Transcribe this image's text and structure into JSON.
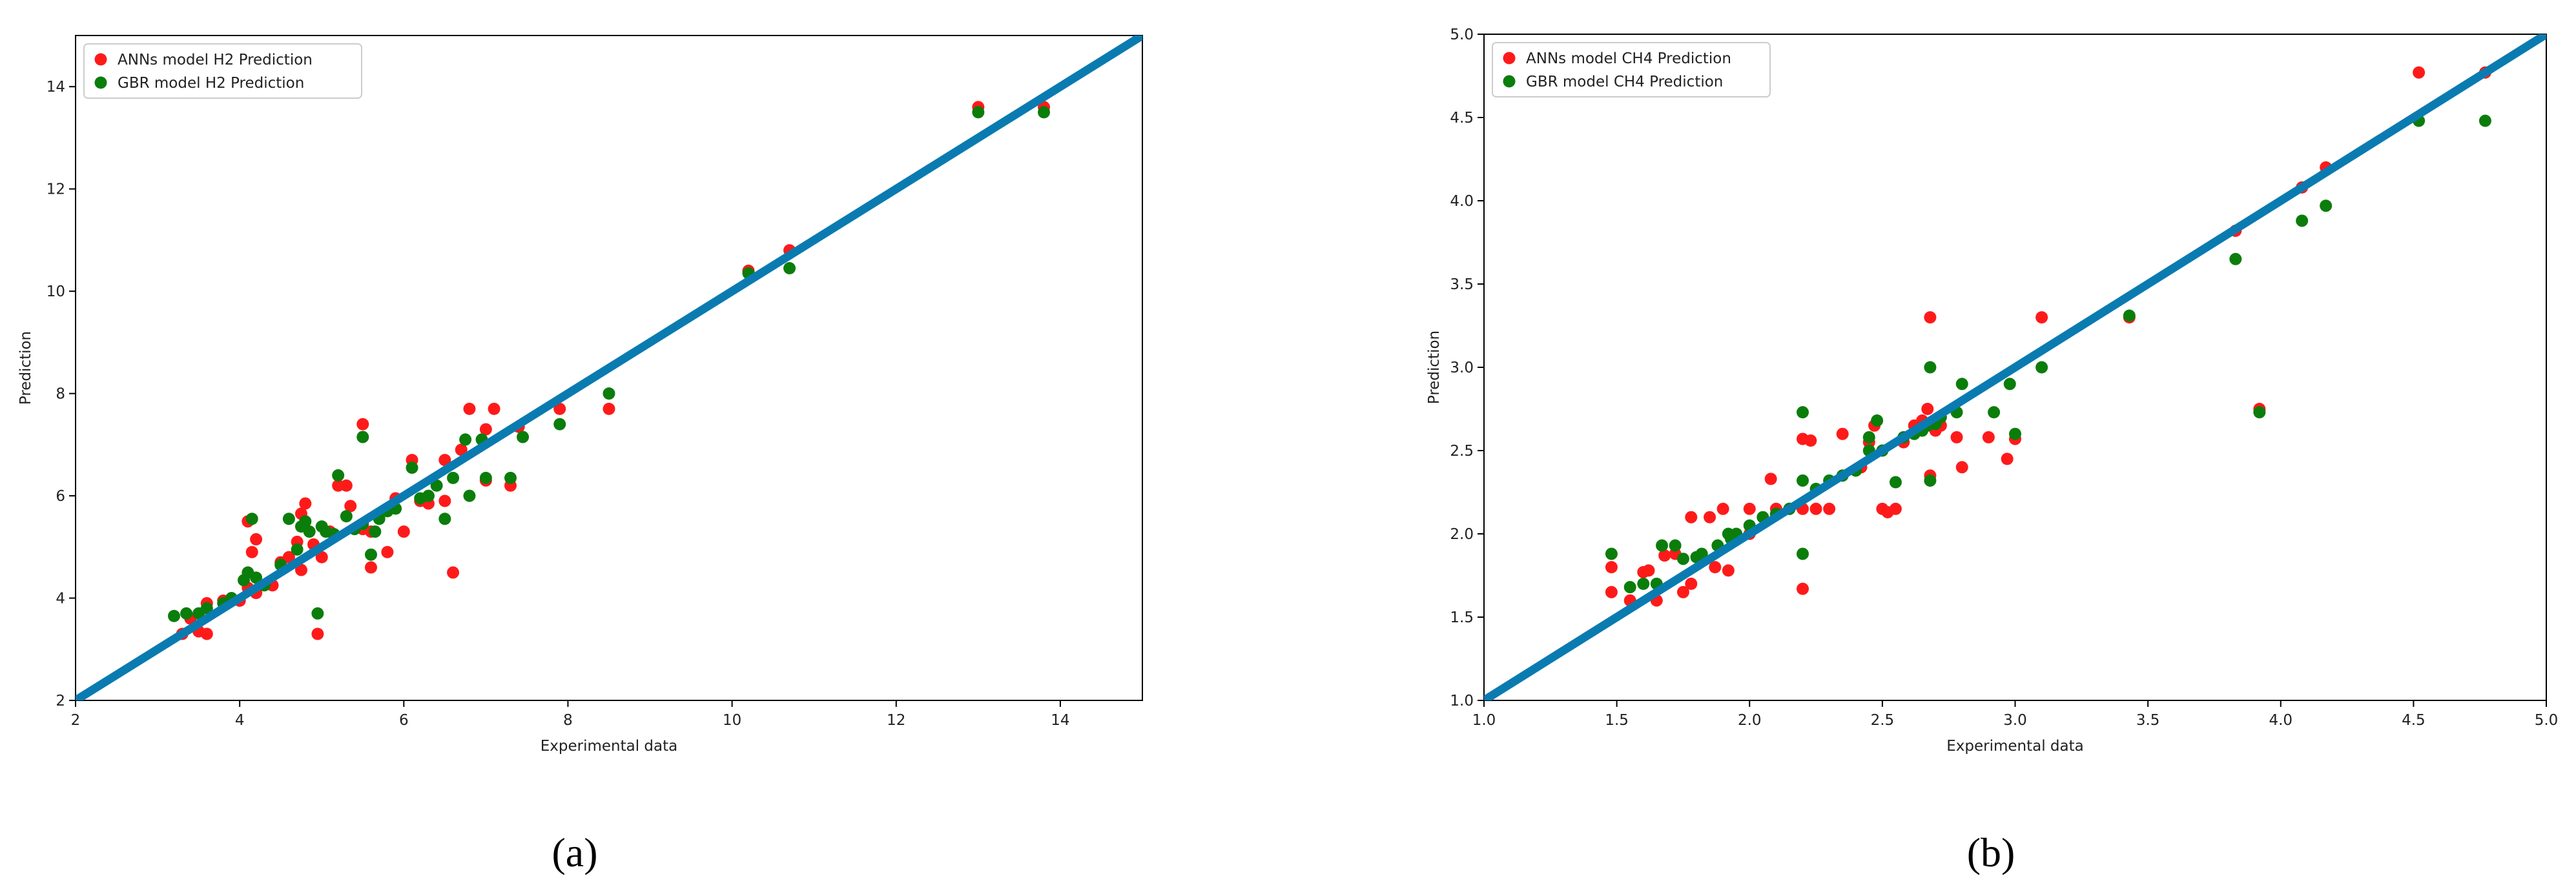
{
  "panels": [
    {
      "label": "(a)"
    },
    {
      "label": "(b)"
    }
  ],
  "chart_data": [
    {
      "type": "scatter",
      "xlabel": "Experimental data",
      "ylabel": "Prediction",
      "xlim": [
        2,
        15
      ],
      "ylim": [
        2,
        15
      ],
      "xticks": [
        2,
        4,
        6,
        8,
        10,
        12,
        14
      ],
      "yticks": [
        2,
        4,
        6,
        8,
        10,
        12,
        14
      ],
      "tick_format": 0,
      "grid": false,
      "legend_position": "top-left",
      "reference_line": {
        "x": [
          2,
          15
        ],
        "y": [
          2,
          15
        ],
        "color": "#0a7bb0"
      },
      "series": [
        {
          "name": "ANNs model H2 Prediction",
          "color": "#ff1a1a",
          "points": [
            [
              3.3,
              3.3
            ],
            [
              3.4,
              3.6
            ],
            [
              3.5,
              3.35
            ],
            [
              3.6,
              3.3
            ],
            [
              3.6,
              3.9
            ],
            [
              3.8,
              3.95
            ],
            [
              4.0,
              3.95
            ],
            [
              4.1,
              4.2
            ],
            [
              4.1,
              5.5
            ],
            [
              4.15,
              4.9
            ],
            [
              4.2,
              5.15
            ],
            [
              4.2,
              4.1
            ],
            [
              4.4,
              4.25
            ],
            [
              4.5,
              4.7
            ],
            [
              4.6,
              4.8
            ],
            [
              4.7,
              5.1
            ],
            [
              4.75,
              5.65
            ],
            [
              4.8,
              5.85
            ],
            [
              4.75,
              4.55
            ],
            [
              4.9,
              5.05
            ],
            [
              4.95,
              3.3
            ],
            [
              5.0,
              4.8
            ],
            [
              5.1,
              5.3
            ],
            [
              5.2,
              6.2
            ],
            [
              5.3,
              6.2
            ],
            [
              5.35,
              5.8
            ],
            [
              5.5,
              7.4
            ],
            [
              5.5,
              5.35
            ],
            [
              5.6,
              4.6
            ],
            [
              5.6,
              5.3
            ],
            [
              5.8,
              4.9
            ],
            [
              5.9,
              5.95
            ],
            [
              6.0,
              5.3
            ],
            [
              6.1,
              6.7
            ],
            [
              6.2,
              5.9
            ],
            [
              6.3,
              5.85
            ],
            [
              6.5,
              5.9
            ],
            [
              6.5,
              6.7
            ],
            [
              6.6,
              4.5
            ],
            [
              6.7,
              6.9
            ],
            [
              6.8,
              7.7
            ],
            [
              7.0,
              6.3
            ],
            [
              7.0,
              7.3
            ],
            [
              7.1,
              7.7
            ],
            [
              7.3,
              6.2
            ],
            [
              7.4,
              7.35
            ],
            [
              7.9,
              7.7
            ],
            [
              8.5,
              7.7
            ],
            [
              10.2,
              10.4
            ],
            [
              10.7,
              10.8
            ],
            [
              13.0,
              13.6
            ],
            [
              13.8,
              13.6
            ]
          ]
        },
        {
          "name": "GBR model H2 Prediction",
          "color": "#0b7d0b",
          "points": [
            [
              3.2,
              3.65
            ],
            [
              3.35,
              3.7
            ],
            [
              3.5,
              3.7
            ],
            [
              3.6,
              3.8
            ],
            [
              3.8,
              3.9
            ],
            [
              3.9,
              4.0
            ],
            [
              4.05,
              4.35
            ],
            [
              4.1,
              4.5
            ],
            [
              4.15,
              5.55
            ],
            [
              4.2,
              4.4
            ],
            [
              4.3,
              4.25
            ],
            [
              4.5,
              4.65
            ],
            [
              4.6,
              5.55
            ],
            [
              4.7,
              4.95
            ],
            [
              4.75,
              5.4
            ],
            [
              4.8,
              5.5
            ],
            [
              4.85,
              5.3
            ],
            [
              4.95,
              3.7
            ],
            [
              5.0,
              5.4
            ],
            [
              5.05,
              5.3
            ],
            [
              5.15,
              5.25
            ],
            [
              5.2,
              6.4
            ],
            [
              5.3,
              5.6
            ],
            [
              5.4,
              5.35
            ],
            [
              5.5,
              7.15
            ],
            [
              5.5,
              5.45
            ],
            [
              5.6,
              4.85
            ],
            [
              5.65,
              5.3
            ],
            [
              5.7,
              5.55
            ],
            [
              5.8,
              5.7
            ],
            [
              5.9,
              5.75
            ],
            [
              6.1,
              6.55
            ],
            [
              6.2,
              5.95
            ],
            [
              6.3,
              6.0
            ],
            [
              6.4,
              6.2
            ],
            [
              6.5,
              5.55
            ],
            [
              6.6,
              6.35
            ],
            [
              6.75,
              7.1
            ],
            [
              6.8,
              6.0
            ],
            [
              6.95,
              7.1
            ],
            [
              7.0,
              6.35
            ],
            [
              7.3,
              6.35
            ],
            [
              7.45,
              7.15
            ],
            [
              7.9,
              7.4
            ],
            [
              8.5,
              8.0
            ],
            [
              10.2,
              10.35
            ],
            [
              10.7,
              10.45
            ],
            [
              13.0,
              13.5
            ],
            [
              13.8,
              13.5
            ]
          ]
        }
      ]
    },
    {
      "type": "scatter",
      "xlabel": "Experimental data",
      "ylabel": "Prediction",
      "xlim": [
        1.0,
        5.0
      ],
      "ylim": [
        1.0,
        5.0
      ],
      "xticks": [
        1.0,
        1.5,
        2.0,
        2.5,
        3.0,
        3.5,
        4.0,
        4.5,
        5.0
      ],
      "yticks": [
        1.0,
        1.5,
        2.0,
        2.5,
        3.0,
        3.5,
        4.0,
        4.5,
        5.0
      ],
      "tick_format": 1,
      "grid": false,
      "legend_position": "top-left",
      "reference_line": {
        "x": [
          1.0,
          5.0
        ],
        "y": [
          1.0,
          5.0
        ],
        "color": "#0a7bb0"
      },
      "series": [
        {
          "name": "ANNs model CH4 Prediction",
          "color": "#ff1a1a",
          "points": [
            [
              1.48,
              1.65
            ],
            [
              1.48,
              1.8
            ],
            [
              1.55,
              1.6
            ],
            [
              1.6,
              1.77
            ],
            [
              1.62,
              1.78
            ],
            [
              1.65,
              1.6
            ],
            [
              1.68,
              1.87
            ],
            [
              1.72,
              1.88
            ],
            [
              1.75,
              1.65
            ],
            [
              1.78,
              1.7
            ],
            [
              1.78,
              2.1
            ],
            [
              1.85,
              2.1
            ],
            [
              1.87,
              1.8
            ],
            [
              1.9,
              2.15
            ],
            [
              1.92,
              1.78
            ],
            [
              2.0,
              2.15
            ],
            [
              2.0,
              2.0
            ],
            [
              2.08,
              2.33
            ],
            [
              2.1,
              2.15
            ],
            [
              2.15,
              2.15
            ],
            [
              2.2,
              1.67
            ],
            [
              2.2,
              2.15
            ],
            [
              2.2,
              2.57
            ],
            [
              2.23,
              2.56
            ],
            [
              2.25,
              2.15
            ],
            [
              2.3,
              2.15
            ],
            [
              2.35,
              2.6
            ],
            [
              2.42,
              2.4
            ],
            [
              2.45,
              2.55
            ],
            [
              2.47,
              2.65
            ],
            [
              2.5,
              2.15
            ],
            [
              2.52,
              2.13
            ],
            [
              2.55,
              2.15
            ],
            [
              2.58,
              2.55
            ],
            [
              2.62,
              2.65
            ],
            [
              2.65,
              2.68
            ],
            [
              2.67,
              2.75
            ],
            [
              2.68,
              2.35
            ],
            [
              2.68,
              3.3
            ],
            [
              2.7,
              2.62
            ],
            [
              2.72,
              2.65
            ],
            [
              2.78,
              2.58
            ],
            [
              2.8,
              2.4
            ],
            [
              2.9,
              2.58
            ],
            [
              2.97,
              2.45
            ],
            [
              3.0,
              2.57
            ],
            [
              3.1,
              3.3
            ],
            [
              3.43,
              3.3
            ],
            [
              3.83,
              3.82
            ],
            [
              3.92,
              2.75
            ],
            [
              4.08,
              4.08
            ],
            [
              4.17,
              4.2
            ],
            [
              4.52,
              4.77
            ],
            [
              4.77,
              4.77
            ]
          ]
        },
        {
          "name": "GBR model CH4 Prediction",
          "color": "#0b7d0b",
          "points": [
            [
              1.48,
              1.88
            ],
            [
              1.55,
              1.68
            ],
            [
              1.6,
              1.7
            ],
            [
              1.65,
              1.7
            ],
            [
              1.67,
              1.93
            ],
            [
              1.72,
              1.93
            ],
            [
              1.75,
              1.85
            ],
            [
              1.8,
              1.86
            ],
            [
              1.82,
              1.88
            ],
            [
              1.88,
              1.93
            ],
            [
              1.92,
              2.0
            ],
            [
              1.93,
              1.97
            ],
            [
              1.95,
              2.0
            ],
            [
              2.0,
              2.05
            ],
            [
              2.05,
              2.1
            ],
            [
              2.1,
              2.12
            ],
            [
              2.15,
              2.15
            ],
            [
              2.2,
              2.73
            ],
            [
              2.2,
              2.32
            ],
            [
              2.2,
              1.88
            ],
            [
              2.25,
              2.27
            ],
            [
              2.3,
              2.32
            ],
            [
              2.35,
              2.35
            ],
            [
              2.4,
              2.38
            ],
            [
              2.45,
              2.58
            ],
            [
              2.45,
              2.5
            ],
            [
              2.48,
              2.68
            ],
            [
              2.5,
              2.5
            ],
            [
              2.55,
              2.31
            ],
            [
              2.58,
              2.58
            ],
            [
              2.62,
              2.6
            ],
            [
              2.65,
              2.62
            ],
            [
              2.67,
              2.65
            ],
            [
              2.68,
              3.0
            ],
            [
              2.68,
              2.32
            ],
            [
              2.7,
              2.66
            ],
            [
              2.72,
              2.7
            ],
            [
              2.78,
              2.73
            ],
            [
              2.8,
              2.9
            ],
            [
              2.92,
              2.73
            ],
            [
              2.98,
              2.9
            ],
            [
              3.0,
              2.6
            ],
            [
              3.1,
              3.0
            ],
            [
              3.43,
              3.31
            ],
            [
              3.83,
              3.65
            ],
            [
              3.92,
              2.73
            ],
            [
              4.08,
              3.88
            ],
            [
              4.17,
              3.97
            ],
            [
              4.52,
              4.48
            ],
            [
              4.77,
              4.48
            ]
          ]
        }
      ]
    }
  ]
}
